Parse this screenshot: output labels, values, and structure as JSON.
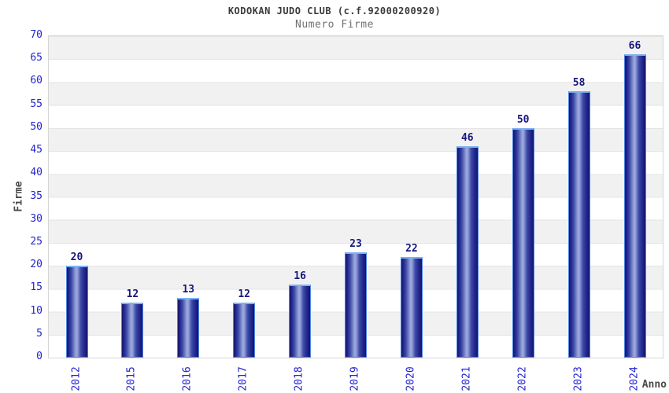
{
  "chart_data": {
    "type": "bar",
    "title": "KODOKAN JUDO CLUB (c.f.92000200920)",
    "subtitle": "Numero Firme",
    "xlabel": "Anno",
    "ylabel": "Firme",
    "categories": [
      "2012",
      "2015",
      "2016",
      "2017",
      "2018",
      "2019",
      "2020",
      "2021",
      "2022",
      "2023",
      "2024"
    ],
    "values": [
      20,
      12,
      13,
      12,
      16,
      23,
      22,
      46,
      50,
      58,
      66
    ],
    "ylim": [
      0,
      70
    ],
    "yticks": [
      0,
      5,
      10,
      15,
      20,
      25,
      30,
      35,
      40,
      45,
      50,
      55,
      60,
      65,
      70
    ],
    "grid": "horizontal alternating bands, light gray lines every 5 units",
    "legend": "none",
    "colors": {
      "background": "#ffffff",
      "band_gray": "#f1f1f1",
      "grid_line": "#e4e4e4",
      "plot_border": "#d6d6d6",
      "axis_tick_text": "#2323cd",
      "value_label_text": "#17177e",
      "title_text": "#3a3a3a",
      "subtitle_text": "#707070",
      "axis_title_text": "#4a4a4a",
      "bar_border": "#4f86e2",
      "bar_border_top": "#7ab2f5",
      "bar_edge_dark": "#14146e",
      "bar_dark": "#23278f",
      "bar_mid": "#3c4aa6",
      "bar_highlight": "#9aa6dc"
    }
  }
}
